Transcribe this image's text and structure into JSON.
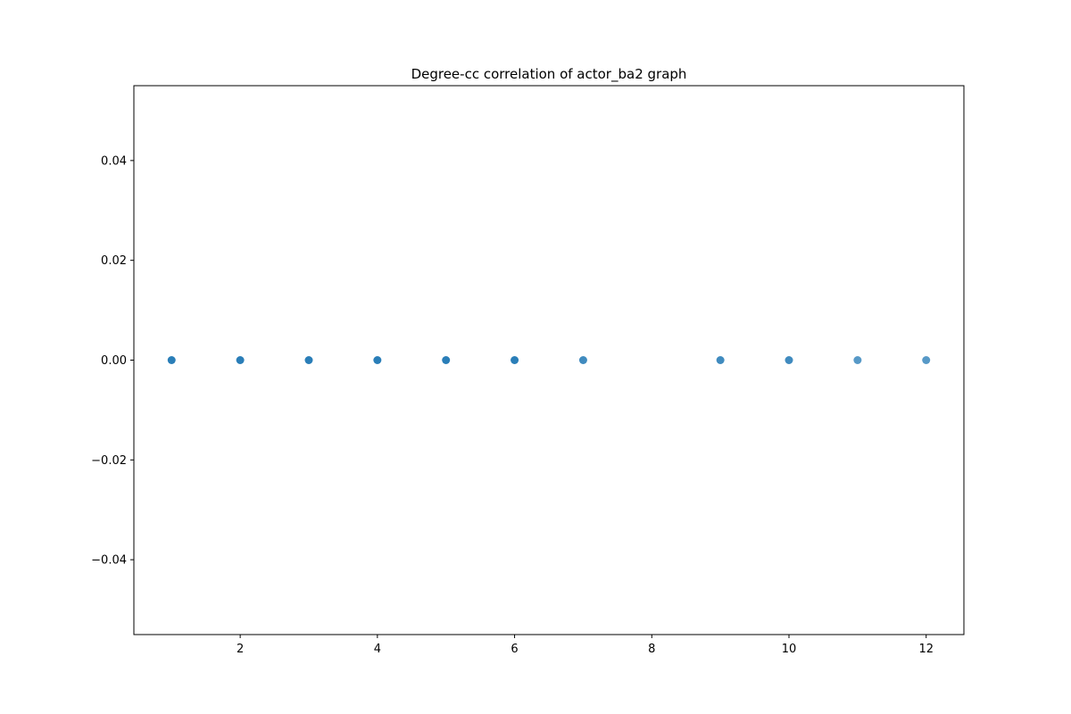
{
  "chart_data": {
    "type": "scatter",
    "title": "Degree-cc correlation of actor_ba2 graph",
    "xlabel": "",
    "ylabel": "",
    "xlim": [
      0.45,
      12.55
    ],
    "ylim": [
      -0.055,
      0.055
    ],
    "x_ticks": [
      2,
      4,
      6,
      8,
      10,
      12
    ],
    "x_tick_labels": [
      "2",
      "4",
      "6",
      "8",
      "10",
      "12"
    ],
    "y_ticks": [
      -0.04,
      -0.02,
      0.0,
      0.02,
      0.04
    ],
    "y_tick_labels": [
      "−0.04",
      "−0.02",
      "0.00",
      "0.02",
      "0.04"
    ],
    "grid": false,
    "legend": "none",
    "series": [
      {
        "color": "#1f77b4",
        "points": [
          {
            "x": 1,
            "y": 0.0,
            "density": "dense"
          },
          {
            "x": 2,
            "y": 0.0,
            "density": "dense"
          },
          {
            "x": 3,
            "y": 0.0,
            "density": "dense"
          },
          {
            "x": 4,
            "y": 0.0,
            "density": "dense"
          },
          {
            "x": 5,
            "y": 0.0,
            "density": "dense"
          },
          {
            "x": 6,
            "y": 0.0,
            "density": "dense"
          },
          {
            "x": 7,
            "y": 0.0,
            "density": "medium"
          },
          {
            "x": 9,
            "y": 0.0,
            "density": "medium"
          },
          {
            "x": 10,
            "y": 0.0,
            "density": "medium"
          },
          {
            "x": 11,
            "y": 0.0,
            "density": "single"
          },
          {
            "x": 12,
            "y": 0.0,
            "density": "single"
          }
        ]
      }
    ]
  }
}
